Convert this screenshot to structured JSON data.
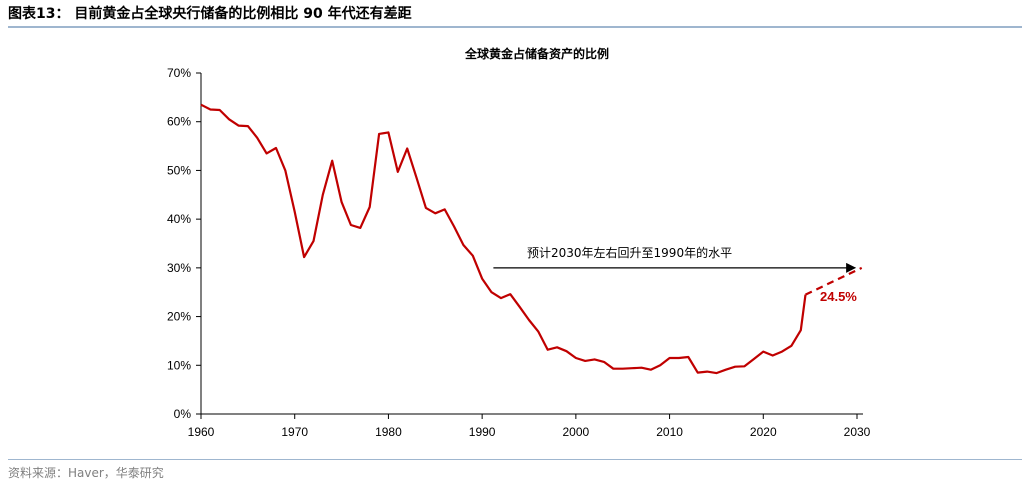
{
  "header": {
    "title": "图表13：  目前黄金占全球央行储备的比例相比 90 年代还有差距"
  },
  "footer": {
    "source": "资料来源：Haver，华泰研究"
  },
  "colors": {
    "series": "#c00000",
    "rule": "#9fb6cf"
  },
  "chart_data": {
    "type": "line",
    "title": "全球黄金占储备资产的比例",
    "xlim": [
      1960,
      2030
    ],
    "ylim": [
      0,
      70
    ],
    "x_ticks": [
      "1960",
      "1970",
      "1980",
      "1990",
      "2000",
      "2010",
      "2020",
      "2030"
    ],
    "y_ticks": [
      "0%",
      "10%",
      "20%",
      "30%",
      "40%",
      "50%",
      "60%",
      "70%"
    ],
    "grid": false,
    "series": [
      {
        "style": "solid",
        "points": [
          [
            1960,
            63.5
          ],
          [
            1961,
            62.5
          ],
          [
            1962,
            62.4
          ],
          [
            1963,
            60.5
          ],
          [
            1964,
            59.2
          ],
          [
            1965,
            59.1
          ],
          [
            1966,
            56.7
          ],
          [
            1967,
            53.5
          ],
          [
            1968,
            54.6
          ],
          [
            1969,
            50.0
          ],
          [
            1970,
            41.5
          ],
          [
            1971,
            32.2
          ],
          [
            1972,
            35.5
          ],
          [
            1973,
            45.0
          ],
          [
            1974,
            52.0
          ],
          [
            1975,
            43.5
          ],
          [
            1976,
            38.8
          ],
          [
            1977,
            38.2
          ],
          [
            1978,
            42.5
          ],
          [
            1979,
            57.5
          ],
          [
            1980,
            57.8
          ],
          [
            1981,
            49.7
          ],
          [
            1982,
            54.5
          ],
          [
            1983,
            48.5
          ],
          [
            1984,
            42.3
          ],
          [
            1985,
            41.2
          ],
          [
            1986,
            42.0
          ],
          [
            1987,
            38.5
          ],
          [
            1988,
            34.7
          ],
          [
            1989,
            32.5
          ],
          [
            1990,
            27.8
          ],
          [
            1991,
            25.0
          ],
          [
            1992,
            23.8
          ],
          [
            1993,
            24.6
          ],
          [
            1994,
            22.0
          ],
          [
            1995,
            19.3
          ],
          [
            1996,
            16.9
          ],
          [
            1997,
            13.2
          ],
          [
            1998,
            13.7
          ],
          [
            1999,
            12.9
          ],
          [
            2000,
            11.5
          ],
          [
            2001,
            10.9
          ],
          [
            2002,
            11.2
          ],
          [
            2003,
            10.7
          ],
          [
            2004,
            9.3
          ],
          [
            2005,
            9.3
          ],
          [
            2006,
            9.4
          ],
          [
            2007,
            9.5
          ],
          [
            2008,
            9.1
          ],
          [
            2009,
            10.0
          ],
          [
            2010,
            11.5
          ],
          [
            2011,
            11.5
          ],
          [
            2012,
            11.7
          ],
          [
            2013,
            8.5
          ],
          [
            2014,
            8.7
          ],
          [
            2015,
            8.4
          ],
          [
            2016,
            9.1
          ],
          [
            2017,
            9.7
          ],
          [
            2018,
            9.8
          ],
          [
            2019,
            11.3
          ],
          [
            2020,
            12.8
          ],
          [
            2021,
            12.0
          ],
          [
            2022,
            12.8
          ],
          [
            2023,
            14.0
          ],
          [
            2024,
            17.2
          ],
          [
            2024.5,
            24.5
          ]
        ]
      },
      {
        "style": "dashed",
        "points": [
          [
            2024.5,
            24.5
          ],
          [
            2030.5,
            30.0
          ]
        ]
      }
    ],
    "annotations": [
      {
        "text": "预计2030年左右回升至1990年的水平",
        "arrow_from": [
          1991.2,
          30.0
        ],
        "arrow_to": [
          2029.8,
          30.0
        ]
      },
      {
        "text": "24.5%"
      }
    ]
  }
}
